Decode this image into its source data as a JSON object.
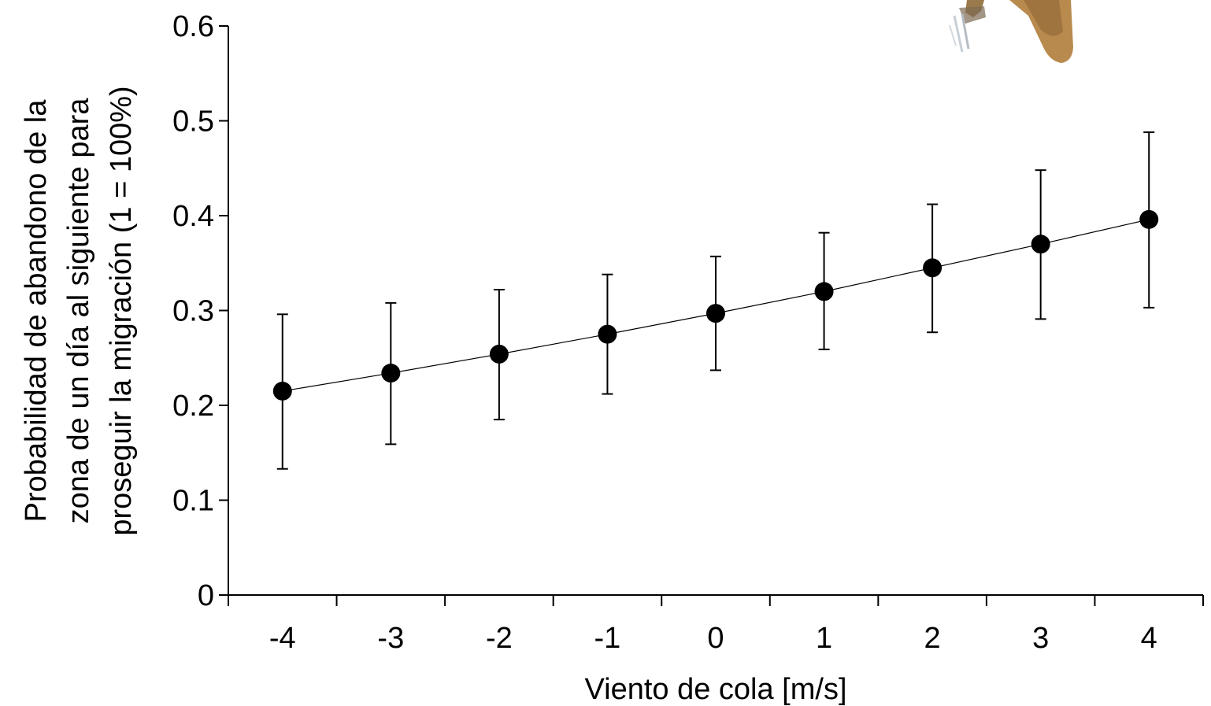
{
  "chart_data": {
    "type": "scatter",
    "xlabel": "Viento de cola [m/s]",
    "ylabel_lines": [
      "Probabilidad de abandono de la",
      "zona de un día al siguiente para",
      "proseguir la migración (1 = 100%)"
    ],
    "categories": [
      "-4",
      "-3",
      "-2",
      "-1",
      "0",
      "1",
      "2",
      "3",
      "4"
    ],
    "x": [
      -4,
      -3,
      -2,
      -1,
      0,
      1,
      2,
      3,
      4
    ],
    "y_ticks": [
      "0",
      "0.1",
      "0.2",
      "0.3",
      "0.4",
      "0.5",
      "0.6"
    ],
    "ylim": [
      0,
      0.6
    ],
    "grid": false,
    "series": [
      {
        "values": [
          0.215,
          0.234,
          0.254,
          0.275,
          0.297,
          0.32,
          0.345,
          0.37,
          0.396
        ],
        "error_lower": [
          0.133,
          0.159,
          0.185,
          0.212,
          0.237,
          0.259,
          0.277,
          0.291,
          0.303
        ],
        "error_upper": [
          0.296,
          0.308,
          0.322,
          0.338,
          0.357,
          0.382,
          0.412,
          0.448,
          0.488
        ],
        "trend_line": true,
        "color": "#000000"
      }
    ]
  },
  "decoration": {
    "image_icon": "bird-illustration-partial"
  }
}
